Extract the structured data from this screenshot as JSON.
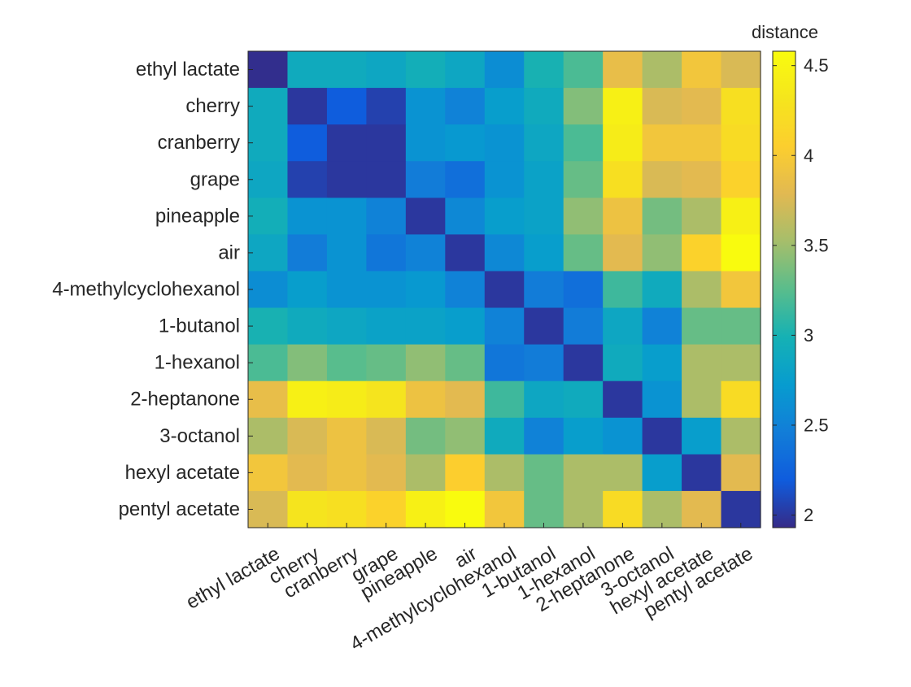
{
  "chart_data": {
    "type": "heatmap",
    "title": "",
    "xlabel": "",
    "ylabel": "",
    "colorbar_label": "distance",
    "colormap": "parula",
    "clim": [
      1.93,
      4.58
    ],
    "colorbar_ticks": [
      2,
      2.5,
      3,
      3.5,
      4,
      4.5
    ],
    "colorbar_tick_labels": [
      "2",
      "2.5",
      "3",
      "3.5",
      "4",
      "4.5"
    ],
    "row_labels": [
      "ethyl lactate",
      "cherry",
      "cranberry",
      "grape",
      "pineapple",
      "air",
      "4-methylcyclohexanol",
      "1-butanol",
      "1-hexanol",
      "2-heptanone",
      "3-octanol",
      "hexyl acetate",
      "pentyl acetate"
    ],
    "col_labels": [
      "ethyl lactate",
      "cherry",
      "cranberry",
      "grape",
      "pineapple",
      "air",
      "4-methylcyclohexanol",
      "1-butanol",
      "1-hexanol",
      "2-heptanone",
      "3-octanol",
      "hexyl acetate",
      "pentyl acetate"
    ],
    "values": [
      [
        1.95,
        2.9,
        2.9,
        2.85,
        2.95,
        2.85,
        2.6,
        3.0,
        3.2,
        3.85,
        3.55,
        3.95,
        3.75
      ],
      [
        2.9,
        2.0,
        2.2,
        2.05,
        2.65,
        2.5,
        2.75,
        2.9,
        3.4,
        4.45,
        3.75,
        3.8,
        4.25
      ],
      [
        2.9,
        2.2,
        2.0,
        2.0,
        2.65,
        2.7,
        2.65,
        2.85,
        3.2,
        4.4,
        3.95,
        3.95,
        4.2
      ],
      [
        2.85,
        2.05,
        2.0,
        2.0,
        2.45,
        2.35,
        2.65,
        2.8,
        3.3,
        4.25,
        3.75,
        3.8,
        4.1
      ],
      [
        2.95,
        2.65,
        2.65,
        2.5,
        2.0,
        2.55,
        2.75,
        2.8,
        3.45,
        3.9,
        3.35,
        3.55,
        4.45
      ],
      [
        2.85,
        2.45,
        2.65,
        2.4,
        2.5,
        2.0,
        2.55,
        2.75,
        3.3,
        3.8,
        3.45,
        4.1,
        4.58
      ],
      [
        2.6,
        2.75,
        2.65,
        2.65,
        2.7,
        2.5,
        2.0,
        2.45,
        2.35,
        3.15,
        2.9,
        3.55,
        3.95
      ],
      [
        3.0,
        2.9,
        2.85,
        2.8,
        2.8,
        2.75,
        2.5,
        2.0,
        2.45,
        2.85,
        2.5,
        3.3,
        3.3
      ],
      [
        3.2,
        3.4,
        3.25,
        3.3,
        3.45,
        3.3,
        2.4,
        2.45,
        2.0,
        2.9,
        2.75,
        3.55,
        3.55
      ],
      [
        3.85,
        4.45,
        4.4,
        4.3,
        3.9,
        3.8,
        3.15,
        2.85,
        2.9,
        2.0,
        2.65,
        3.55,
        4.2
      ],
      [
        3.55,
        3.75,
        3.9,
        3.75,
        3.35,
        3.45,
        2.9,
        2.5,
        2.75,
        2.65,
        2.0,
        2.75,
        3.55
      ],
      [
        3.95,
        3.8,
        3.9,
        3.8,
        3.55,
        4.05,
        3.55,
        3.3,
        3.55,
        3.55,
        2.75,
        2.0,
        3.8
      ],
      [
        3.75,
        4.3,
        4.25,
        4.1,
        4.45,
        4.58,
        3.95,
        3.3,
        3.55,
        4.2,
        3.55,
        3.8,
        2.0
      ]
    ]
  }
}
